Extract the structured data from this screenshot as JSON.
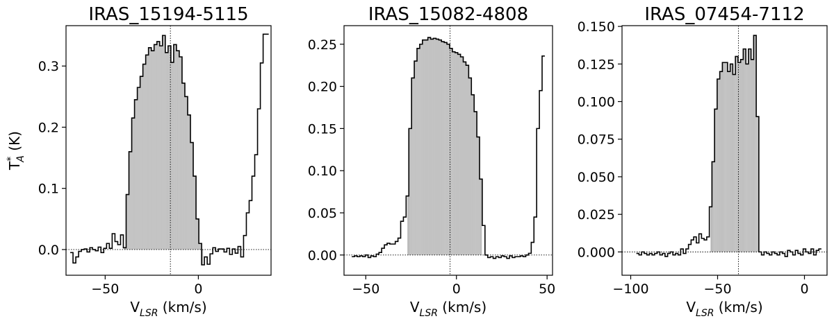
{
  "chart_data": [
    {
      "type": "line",
      "style": "step",
      "title": "IRAS_15194-5115",
      "xlabel_main": "V",
      "xlabel_sub": "LSR",
      "xlabel_unit": " (km/s)",
      "ylabel_main": "T",
      "ylabel_sup": "*",
      "ylabel_sub": "A",
      "ylabel_unit": " (K)",
      "xlim": [
        -71,
        39
      ],
      "ylim": [
        -0.042,
        0.366
      ],
      "xticks": [
        -50,
        0
      ],
      "xtick_labels": [
        "−50",
        "0"
      ],
      "yticks": [
        0.0,
        0.1,
        0.2,
        0.3
      ],
      "ytick_labels": [
        "0.0",
        "0.1",
        "0.2",
        "0.3"
      ],
      "vline": -15,
      "fill_range": [
        -40,
        2.5
      ],
      "x": [
        -68.0,
        -66.5,
        -65.0,
        -63.5,
        -62.0,
        -60.5,
        -59.0,
        -57.5,
        -56.0,
        -54.5,
        -53.0,
        -51.5,
        -50.0,
        -48.5,
        -47.0,
        -45.5,
        -44.0,
        -42.5,
        -41.0,
        -39.5,
        -38.0,
        -36.5,
        -35.0,
        -33.5,
        -32.0,
        -30.5,
        -29.0,
        -27.5,
        -26.0,
        -24.5,
        -23.0,
        -21.5,
        -20.0,
        -18.5,
        -17.0,
        -15.5,
        -14.0,
        -12.5,
        -11.0,
        -9.5,
        -8.0,
        -6.5,
        -5.0,
        -3.5,
        -2.0,
        -0.5,
        1.0,
        2.5,
        4.0,
        5.5,
        7.0,
        8.5,
        10.0,
        11.5,
        13.0,
        14.5,
        16.0,
        17.5,
        19.0,
        20.5,
        22.0,
        23.5,
        25.0,
        26.5,
        28.0,
        29.5,
        31.0,
        32.5,
        34.0,
        35.5,
        37.0
      ],
      "y": [
        -0.005,
        -0.022,
        -0.012,
        -0.003,
        0.0,
        0.001,
        -0.004,
        0.003,
        0.0,
        -0.002,
        0.004,
        -0.005,
        0.002,
        0.01,
        0.002,
        0.026,
        0.013,
        0.008,
        0.024,
        0.003,
        0.09,
        0.16,
        0.215,
        0.245,
        0.265,
        0.283,
        0.303,
        0.318,
        0.33,
        0.325,
        0.335,
        0.34,
        0.333,
        0.35,
        0.322,
        0.333,
        0.306,
        0.335,
        0.325,
        0.315,
        0.272,
        0.25,
        0.22,
        0.175,
        0.12,
        0.05,
        0.01,
        -0.025,
        -0.012,
        -0.024,
        -0.007,
        0.003,
        -0.003,
        0.001,
        0.001,
        -0.004,
        0.002,
        -0.008,
        0.001,
        -0.006,
        0.005,
        -0.012,
        0.023,
        0.06,
        0.08,
        0.12,
        0.155,
        0.23,
        0.305,
        0.352,
        0.352
      ]
    },
    {
      "type": "line",
      "style": "step",
      "title": "IRAS_15082-4808",
      "xlabel_main": "V",
      "xlabel_sub": "LSR",
      "xlabel_unit": " (km/s)",
      "ylabel_main": "",
      "ylabel_sup": "",
      "ylabel_sub": "",
      "ylabel_unit": "",
      "xlim": [
        -62,
        53
      ],
      "ylim": [
        -0.024,
        0.272
      ],
      "xticks": [
        -50,
        0,
        50
      ],
      "xtick_labels": [
        "−50",
        "0",
        "50"
      ],
      "yticks": [
        0.0,
        0.05,
        0.1,
        0.15,
        0.2,
        0.25
      ],
      "ytick_labels": [
        "0.00",
        "0.05",
        "0.10",
        "0.15",
        "0.20",
        "0.25"
      ],
      "vline": -3.5,
      "fill_range": [
        -27,
        14
      ],
      "x": [
        -57.0,
        -55.5,
        -54.0,
        -52.5,
        -51.0,
        -49.5,
        -48.0,
        -46.5,
        -45.0,
        -43.5,
        -42.0,
        -40.5,
        -39.0,
        -37.5,
        -36.0,
        -34.5,
        -33.0,
        -31.5,
        -30.0,
        -28.5,
        -27.0,
        -25.5,
        -24.0,
        -22.5,
        -21.0,
        -19.5,
        -18.0,
        -16.5,
        -15.0,
        -13.5,
        -12.0,
        -10.5,
        -9.0,
        -7.5,
        -6.0,
        -4.5,
        -3.0,
        -1.5,
        0.0,
        1.5,
        3.0,
        4.5,
        6.0,
        7.5,
        9.0,
        10.5,
        12.0,
        13.5,
        15.0,
        16.5,
        18.0,
        19.5,
        21.0,
        22.5,
        24.0,
        25.5,
        27.0,
        28.5,
        30.0,
        31.5,
        33.0,
        34.5,
        36.0,
        37.5,
        39.0,
        40.5,
        42.0,
        43.5,
        45.0,
        46.5,
        48.0
      ],
      "y": [
        -0.002,
        -0.001,
        -0.002,
        -0.001,
        -0.002,
        0.0,
        -0.003,
        -0.001,
        -0.002,
        0.001,
        0.003,
        0.008,
        0.012,
        0.014,
        0.013,
        0.013,
        0.016,
        0.02,
        0.04,
        0.045,
        0.07,
        0.15,
        0.21,
        0.23,
        0.245,
        0.25,
        0.255,
        0.255,
        0.258,
        0.256,
        0.257,
        0.256,
        0.255,
        0.253,
        0.252,
        0.25,
        0.245,
        0.241,
        0.24,
        0.238,
        0.235,
        0.229,
        0.225,
        0.21,
        0.19,
        0.17,
        0.14,
        0.09,
        0.035,
        0.0,
        -0.003,
        -0.002,
        -0.004,
        -0.002,
        -0.003,
        -0.001,
        -0.002,
        -0.004,
        -0.001,
        -0.003,
        -0.002,
        -0.002,
        -0.001,
        -0.002,
        0.0,
        0.002,
        0.015,
        0.045,
        0.15,
        0.195,
        0.236
      ]
    },
    {
      "type": "line",
      "style": "step",
      "title": "IRAS_07454-7112",
      "xlabel_main": "V",
      "xlabel_sub": "LSR",
      "xlabel_unit": " (km/s)",
      "ylabel_main": "",
      "ylabel_sup": "",
      "ylabel_sub": "",
      "ylabel_unit": "",
      "xlim": [
        -105,
        13
      ],
      "ylim": [
        -0.0155,
        0.1505
      ],
      "xticks": [
        -100,
        -50,
        0
      ],
      "xtick_labels": [
        "−100",
        "−50",
        "0"
      ],
      "yticks": [
        0.0,
        0.025,
        0.05,
        0.075,
        0.1,
        0.125,
        0.15
      ],
      "ytick_labels": [
        "0.000",
        "0.025",
        "0.050",
        "0.075",
        "0.100",
        "0.125",
        "0.150"
      ],
      "vline": -38,
      "fill_range": [
        -54,
        -26
      ],
      "x": [
        -96.0,
        -94.5,
        -93.0,
        -91.5,
        -90.0,
        -88.5,
        -87.0,
        -85.5,
        -84.0,
        -82.5,
        -81.0,
        -79.5,
        -78.0,
        -76.5,
        -75.0,
        -73.5,
        -72.0,
        -70.5,
        -69.0,
        -67.5,
        -66.0,
        -64.5,
        -63.0,
        -61.5,
        -60.0,
        -58.5,
        -57.0,
        -55.5,
        -54.0,
        -52.5,
        -51.0,
        -49.5,
        -48.0,
        -46.5,
        -45.0,
        -43.5,
        -42.0,
        -40.5,
        -39.0,
        -37.5,
        -36.0,
        -34.5,
        -33.0,
        -31.5,
        -30.0,
        -28.5,
        -27.0,
        -25.5,
        -24.0,
        -22.5,
        -21.0,
        -19.5,
        -18.0,
        -16.5,
        -15.0,
        -13.5,
        -12.0,
        -10.5,
        -9.0,
        -7.5,
        -6.0,
        -4.5,
        -3.0,
        -1.5,
        0.0,
        1.5,
        3.0,
        4.5,
        6.0,
        7.5,
        9.0
      ],
      "y": [
        -0.001,
        -0.002,
        0.0,
        -0.001,
        -0.002,
        -0.001,
        -0.002,
        -0.001,
        0.0,
        -0.002,
        -0.001,
        -0.003,
        -0.001,
        0.0,
        -0.002,
        -0.001,
        -0.002,
        0.002,
        -0.001,
        0.002,
        0.005,
        0.008,
        0.01,
        0.006,
        0.012,
        0.009,
        0.008,
        0.01,
        0.03,
        0.06,
        0.095,
        0.115,
        0.12,
        0.126,
        0.126,
        0.12,
        0.125,
        0.118,
        0.13,
        0.126,
        0.128,
        0.135,
        0.125,
        0.135,
        0.128,
        0.144,
        0.09,
        0.0,
        -0.002,
        0.0,
        -0.001,
        -0.002,
        0.0,
        -0.001,
        -0.002,
        0.0,
        -0.001,
        -0.003,
        0.001,
        0.0,
        -0.002,
        0.001,
        -0.001,
        -0.002,
        0.002,
        0.0,
        -0.001,
        0.002,
        -0.002,
        0.001,
        0.002
      ]
    }
  ]
}
